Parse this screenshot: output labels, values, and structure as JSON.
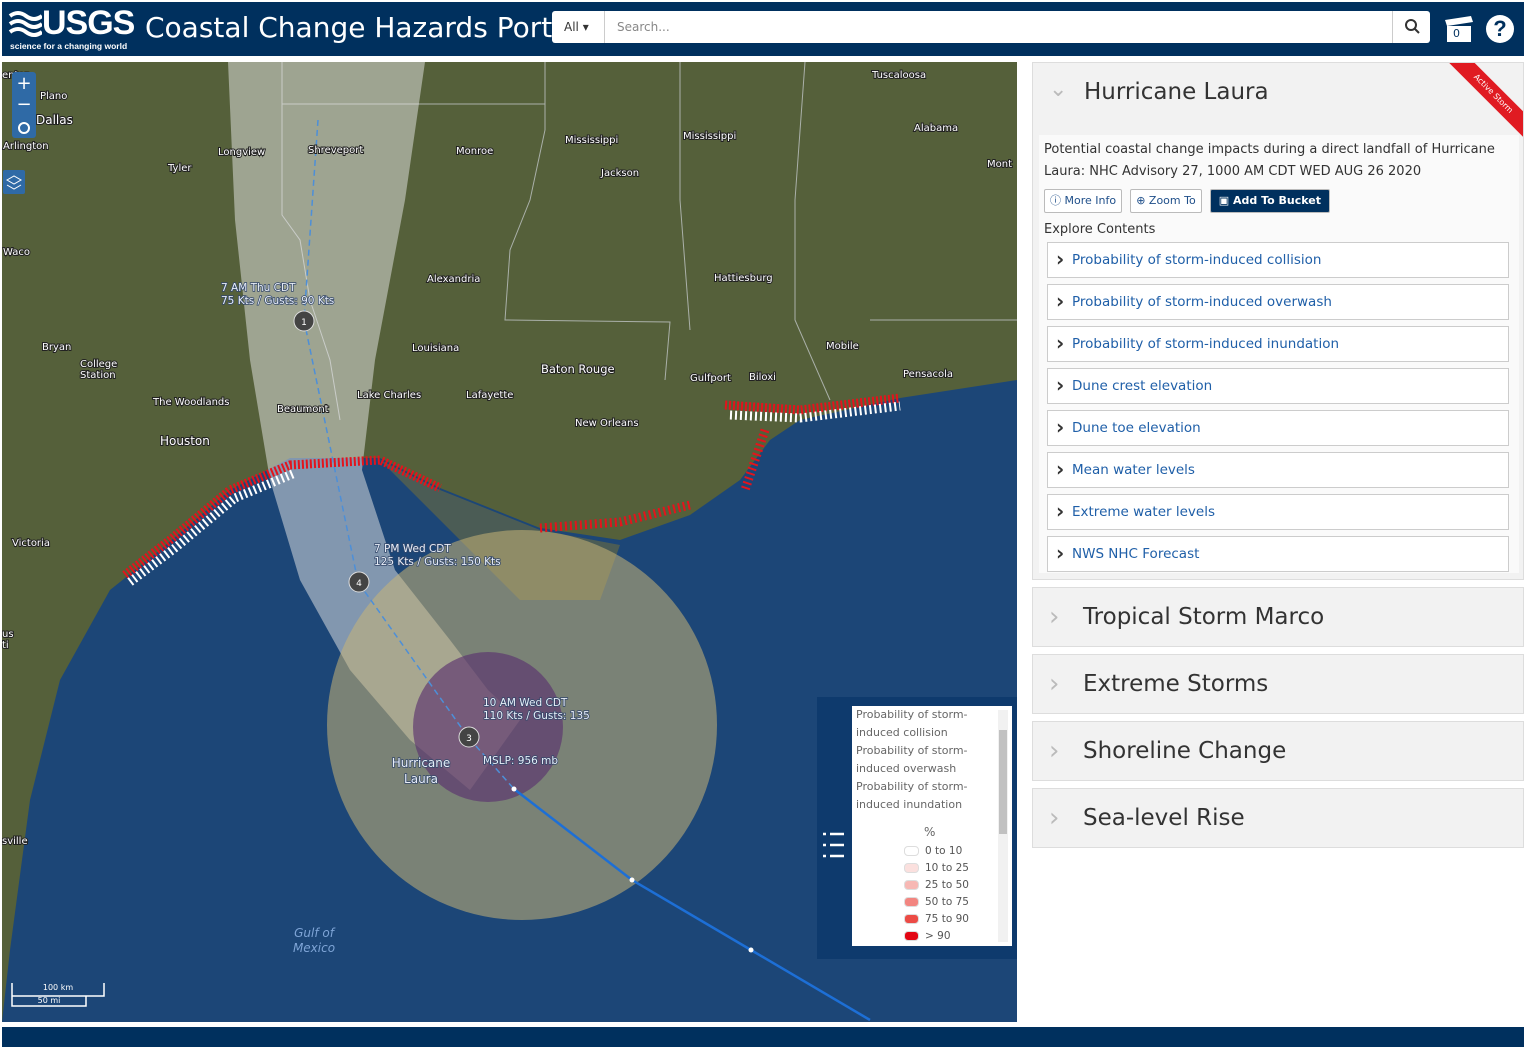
{
  "header": {
    "logo": "USGS",
    "tagline": "science for a changing world",
    "title": "Coastal Change Hazards Portal",
    "search_filter": "All",
    "search_placeholder": "Search...",
    "bucket_count": "0"
  },
  "map": {
    "places": [
      "enton",
      "Plano",
      "Dallas",
      "Arlington",
      "Tyler",
      "Longview",
      "Shreveport",
      "Monroe",
      "Mississippi",
      "Mississippi",
      "Jackson",
      "Tuscaloosa",
      "Alabama",
      "Mont",
      "Waco",
      "Alexandria",
      "Hattiesburg",
      "Bryan",
      "College",
      "Station",
      "Louisiana",
      "Mobile",
      "Baton Rouge",
      "Gulfport",
      "Biloxi",
      "Pensacola",
      "The Woodlands",
      "Lake Charles",
      "Lafayette",
      "Beaumont",
      "Houston",
      "New Orleans",
      "Victoria",
      "us",
      "ti",
      "sville"
    ],
    "storm_points": [
      {
        "number": "1",
        "time": "7 AM Thu CDT",
        "wind": "75 Kts / Gusts: 90 Kts"
      },
      {
        "number": "4",
        "time": "7 PM Wed CDT",
        "wind": "125 Kts / Gusts: 150 Kts"
      },
      {
        "number": "3",
        "time": "10 AM Wed CDT",
        "wind": "110 Kts / Gusts: 135"
      }
    ],
    "storm_name": [
      "Hurricane",
      "Laura"
    ],
    "pressure": "MSLP: 956 mb",
    "gulf": [
      "Gulf of",
      "Mexico"
    ],
    "scale": [
      "100 km",
      "50 mi"
    ]
  },
  "legend": {
    "layers": [
      "Probability of storm-induced collision",
      "Probability of storm-induced overwash",
      "Probability of storm-induced inundation"
    ],
    "unit": "%",
    "classes": [
      {
        "label": "0 to 10",
        "color": "#ffffff"
      },
      {
        "label": "10 to 25",
        "color": "#fbe0de"
      },
      {
        "label": "25 to 50",
        "color": "#f7b8b4"
      },
      {
        "label": "50 to 75",
        "color": "#f28580"
      },
      {
        "label": "75 to 90",
        "color": "#ec4b45"
      },
      {
        "label": "> 90",
        "color": "#e30613"
      }
    ]
  },
  "sidebar": {
    "active": {
      "title": "Hurricane Laura",
      "badge": "Active Storm",
      "description": "Potential coastal change impacts during a direct landfall of Hurricane Laura: NHC Advisory 27, 1000 AM CDT WED AUG 26 2020",
      "buttons": [
        "More Info",
        "Zoom To",
        "Add To Bucket"
      ],
      "explore": "Explore Contents",
      "items": [
        "Probability of storm-induced collision",
        "Probability of storm-induced overwash",
        "Probability of storm-induced inundation",
        "Dune crest elevation",
        "Dune toe elevation",
        "Mean water levels",
        "Extreme water levels",
        "NWS NHC Forecast"
      ]
    },
    "sections": [
      "Tropical Storm Marco",
      "Extreme Storms",
      "Shoreline Change",
      "Sea-level Rise"
    ]
  }
}
